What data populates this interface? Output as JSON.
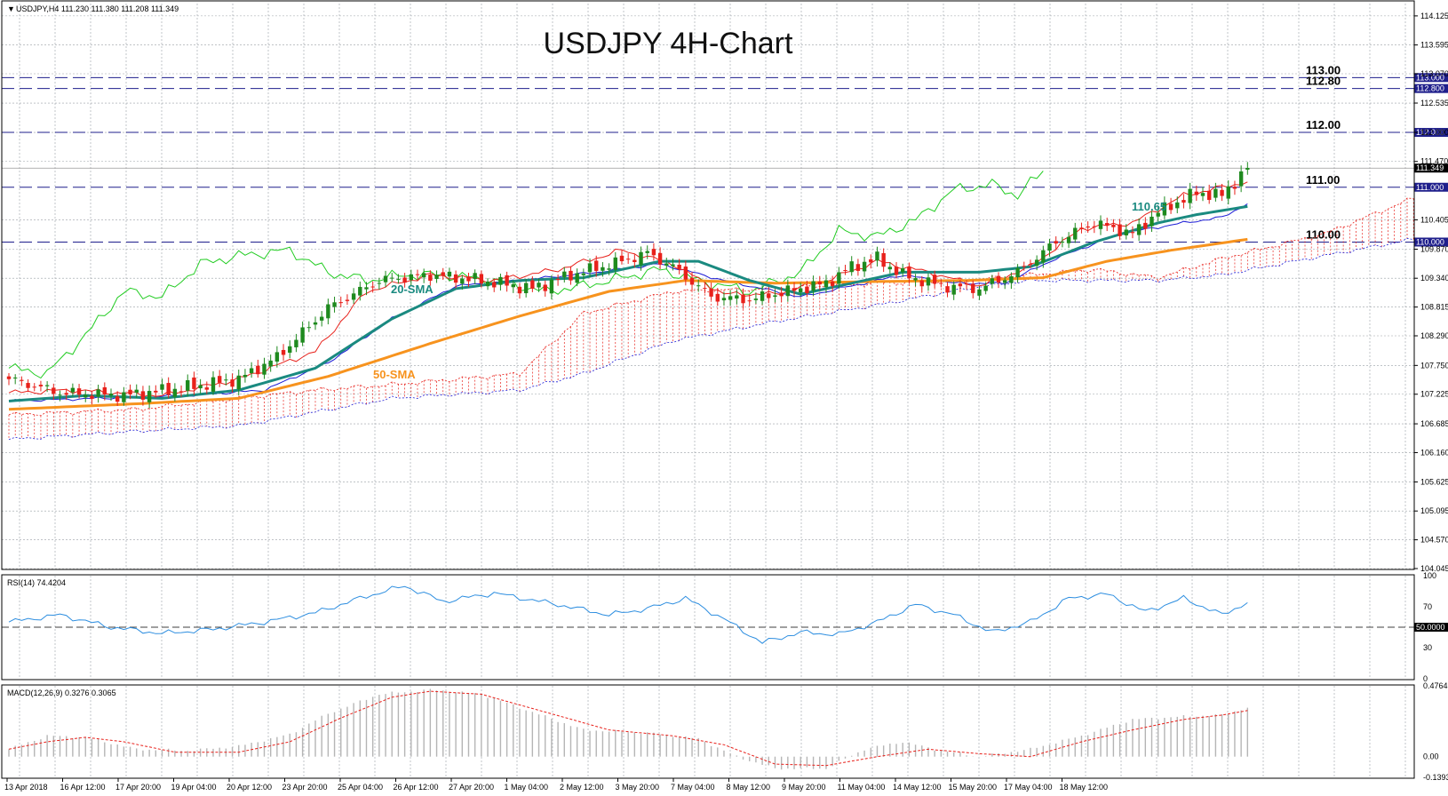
{
  "header": {
    "symbol_info": "USDJPY,H4  111.230 111.380 111.208 111.349",
    "title": "USDJPY 4H-Chart"
  },
  "colors": {
    "sma20": "#1a8a80",
    "sma50": "#f7931e",
    "tenkan": "#e8211b",
    "kijun": "#1c1cd6",
    "chikou": "#22cc22",
    "cloud": "#e8211b",
    "rsi": "#2d8ee0",
    "level_line": "#1f1f8c",
    "bull_candle": "#1e8a1e",
    "bear_candle": "#e8211b"
  },
  "chart_data": {
    "type": "candlestick",
    "ylim": [
      104.045,
      114.35
    ],
    "y_ticks": [
      "114.125",
      "113.595",
      "113.070",
      "112.535",
      "112.000",
      "111.470",
      "110.405",
      "109.870",
      "109.340",
      "108.815",
      "108.290",
      "107.750",
      "107.225",
      "106.685",
      "106.160",
      "105.625",
      "105.095",
      "104.570",
      "104.045"
    ],
    "x_ticks": [
      "13 Apr 2018",
      "16 Apr 12:00",
      "17 Apr 20:00",
      "19 Apr 04:00",
      "20 Apr 12:00",
      "23 Apr 20:00",
      "25 Apr 04:00",
      "26 Apr 12:00",
      "27 Apr 20:00",
      "1 May 04:00",
      "2 May 12:00",
      "3 May 20:00",
      "7 May 04:00",
      "8 May 12:00",
      "9 May 20:00",
      "11 May 04:00",
      "14 May 12:00",
      "15 May 20:00",
      "17 May 04:00",
      "18 May 12:00"
    ],
    "levels": [
      {
        "label": "113.00",
        "value": 113.0,
        "tag": "113.000"
      },
      {
        "label": "112.80",
        "value": 112.8,
        "tag": "112.800"
      },
      {
        "label": "112.00",
        "value": 112.0,
        "tag": "112.000"
      },
      {
        "label": "111.00",
        "value": 111.0,
        "tag": "111.000"
      },
      {
        "label": "110.00",
        "value": 110.0,
        "tag": "110.000"
      }
    ],
    "current_price": {
      "value": 111.349,
      "tag": "111.349"
    },
    "annotations": {
      "sma20": "20-SMA",
      "sma50": "50-SMA",
      "sma20_value": "110.65"
    },
    "close_anchors": [
      [
        0,
        107.5
      ],
      [
        8,
        107.25
      ],
      [
        18,
        107.2
      ],
      [
        28,
        107.35
      ],
      [
        36,
        107.5
      ],
      [
        42,
        107.9
      ],
      [
        50,
        108.8
      ],
      [
        58,
        109.3
      ],
      [
        66,
        109.4
      ],
      [
        74,
        109.3
      ],
      [
        82,
        109.15
      ],
      [
        88,
        109.4
      ],
      [
        96,
        109.65
      ],
      [
        100,
        109.8
      ],
      [
        104,
        109.55
      ],
      [
        110,
        109.0
      ],
      [
        116,
        108.95
      ],
      [
        122,
        109.1
      ],
      [
        128,
        109.25
      ],
      [
        132,
        109.55
      ],
      [
        136,
        109.7
      ],
      [
        140,
        109.4
      ],
      [
        146,
        109.2
      ],
      [
        152,
        109.15
      ],
      [
        158,
        109.45
      ],
      [
        164,
        110.0
      ],
      [
        170,
        110.35
      ],
      [
        176,
        110.15
      ],
      [
        180,
        110.55
      ],
      [
        186,
        110.9
      ],
      [
        190,
        110.85
      ],
      [
        194,
        111.349
      ]
    ],
    "sma20_anchors": [
      [
        0,
        107.1
      ],
      [
        12,
        107.2
      ],
      [
        24,
        107.15
      ],
      [
        36,
        107.3
      ],
      [
        48,
        107.7
      ],
      [
        60,
        108.6
      ],
      [
        70,
        109.15
      ],
      [
        80,
        109.3
      ],
      [
        90,
        109.35
      ],
      [
        102,
        109.65
      ],
      [
        108,
        109.65
      ],
      [
        116,
        109.3
      ],
      [
        124,
        109.05
      ],
      [
        132,
        109.25
      ],
      [
        140,
        109.45
      ],
      [
        152,
        109.45
      ],
      [
        160,
        109.55
      ],
      [
        170,
        110.0
      ],
      [
        180,
        110.35
      ],
      [
        186,
        110.5
      ],
      [
        194,
        110.65
      ]
    ],
    "sma50_anchors": [
      [
        0,
        106.95
      ],
      [
        20,
        107.05
      ],
      [
        36,
        107.15
      ],
      [
        50,
        107.55
      ],
      [
        66,
        108.15
      ],
      [
        80,
        108.65
      ],
      [
        94,
        109.1
      ],
      [
        106,
        109.3
      ],
      [
        120,
        109.25
      ],
      [
        136,
        109.28
      ],
      [
        150,
        109.3
      ],
      [
        162,
        109.35
      ],
      [
        172,
        109.65
      ],
      [
        182,
        109.85
      ],
      [
        194,
        110.05
      ]
    ],
    "tenkan_anchors": [
      [
        0,
        107.25
      ],
      [
        10,
        107.3
      ],
      [
        24,
        107.2
      ],
      [
        36,
        107.5
      ],
      [
        48,
        108.0
      ],
      [
        56,
        109.1
      ],
      [
        66,
        109.4
      ],
      [
        76,
        109.3
      ],
      [
        86,
        109.5
      ],
      [
        96,
        109.85
      ],
      [
        104,
        109.6
      ],
      [
        112,
        109.05
      ],
      [
        120,
        109.05
      ],
      [
        128,
        109.3
      ],
      [
        136,
        109.65
      ],
      [
        144,
        109.45
      ],
      [
        152,
        109.2
      ],
      [
        160,
        109.55
      ],
      [
        168,
        110.25
      ],
      [
        176,
        110.35
      ],
      [
        184,
        110.85
      ],
      [
        190,
        111.0
      ],
      [
        194,
        111.1
      ]
    ],
    "kijun_anchors": [
      [
        0,
        107.1
      ],
      [
        14,
        107.15
      ],
      [
        28,
        107.2
      ],
      [
        40,
        107.3
      ],
      [
        50,
        107.8
      ],
      [
        60,
        108.6
      ],
      [
        70,
        109.2
      ],
      [
        80,
        109.3
      ],
      [
        92,
        109.45
      ],
      [
        102,
        109.6
      ],
      [
        112,
        109.3
      ],
      [
        124,
        109.0
      ],
      [
        132,
        109.2
      ],
      [
        140,
        109.4
      ],
      [
        148,
        109.25
      ],
      [
        156,
        109.25
      ],
      [
        164,
        109.7
      ],
      [
        174,
        110.15
      ],
      [
        184,
        110.35
      ],
      [
        190,
        110.45
      ],
      [
        194,
        110.7
      ]
    ],
    "chikou_anchors": [
      [
        0,
        107.7
      ],
      [
        6,
        107.6
      ],
      [
        12,
        108.3
      ],
      [
        18,
        109.1
      ],
      [
        24,
        109.0
      ],
      [
        30,
        109.6
      ],
      [
        36,
        109.75
      ],
      [
        44,
        109.85
      ],
      [
        50,
        109.45
      ],
      [
        56,
        109.3
      ],
      [
        62,
        109.4
      ],
      [
        68,
        109.4
      ],
      [
        76,
        109.3
      ],
      [
        84,
        109.1
      ],
      [
        90,
        109.2
      ],
      [
        96,
        109.35
      ],
      [
        102,
        109.5
      ],
      [
        108,
        109.3
      ],
      [
        116,
        109.1
      ],
      [
        124,
        109.45
      ],
      [
        130,
        110.2
      ],
      [
        136,
        110.1
      ],
      [
        142,
        110.4
      ],
      [
        148,
        110.95
      ],
      [
        154,
        111.05
      ],
      [
        158,
        110.85
      ],
      [
        162,
        111.3
      ]
    ],
    "cloud_anchors": [
      [
        0,
        106.85,
        106.4
      ],
      [
        20,
        106.95,
        106.55
      ],
      [
        36,
        107.15,
        106.65
      ],
      [
        48,
        107.3,
        106.9
      ],
      [
        60,
        107.4,
        107.15
      ],
      [
        80,
        107.6,
        107.3
      ],
      [
        90,
        108.7,
        107.6
      ],
      [
        104,
        109.1,
        108.2
      ],
      [
        120,
        109.15,
        108.55
      ],
      [
        136,
        109.25,
        108.85
      ],
      [
        150,
        109.3,
        109.15
      ],
      [
        160,
        109.4,
        109.3
      ],
      [
        170,
        109.5,
        109.3
      ],
      [
        180,
        109.35,
        109.3
      ],
      [
        190,
        109.7,
        109.4
      ],
      [
        206,
        110.15,
        109.75
      ],
      [
        220,
        110.8,
        110.05
      ]
    ],
    "rsi": {
      "label": "RSI(14) 74.4204",
      "ylim": [
        0,
        100
      ],
      "ticks": [
        "100",
        "70",
        "30",
        "0"
      ],
      "level": {
        "value": 50,
        "tag": "50.0000"
      },
      "anchors": [
        [
          0,
          55
        ],
        [
          8,
          62
        ],
        [
          16,
          50
        ],
        [
          24,
          44
        ],
        [
          32,
          48
        ],
        [
          40,
          55
        ],
        [
          48,
          64
        ],
        [
          56,
          80
        ],
        [
          62,
          90
        ],
        [
          68,
          75
        ],
        [
          76,
          83
        ],
        [
          86,
          72
        ],
        [
          94,
          62
        ],
        [
          100,
          68
        ],
        [
          106,
          78
        ],
        [
          112,
          58
        ],
        [
          118,
          35
        ],
        [
          124,
          45
        ],
        [
          130,
          43
        ],
        [
          136,
          55
        ],
        [
          142,
          72
        ],
        [
          148,
          62
        ],
        [
          154,
          45
        ],
        [
          160,
          55
        ],
        [
          166,
          78
        ],
        [
          172,
          82
        ],
        [
          178,
          65
        ],
        [
          184,
          78
        ],
        [
          190,
          62
        ],
        [
          194,
          74
        ]
      ]
    },
    "macd": {
      "label": "MACD(12,26,9) 0.3276 0.3065",
      "ylim": [
        -0.1393,
        0.4764
      ],
      "ticks": [
        "0.4764",
        "0.00",
        "-0.1393"
      ],
      "hist_anchors": [
        [
          0,
          0.05
        ],
        [
          6,
          0.14
        ],
        [
          12,
          0.13
        ],
        [
          20,
          0.05
        ],
        [
          28,
          0.04
        ],
        [
          36,
          0.07
        ],
        [
          44,
          0.15
        ],
        [
          50,
          0.29
        ],
        [
          58,
          0.42
        ],
        [
          66,
          0.45
        ],
        [
          74,
          0.42
        ],
        [
          82,
          0.3
        ],
        [
          90,
          0.18
        ],
        [
          100,
          0.16
        ],
        [
          108,
          0.12
        ],
        [
          114,
          0.0
        ],
        [
          120,
          -0.08
        ],
        [
          128,
          -0.08
        ],
        [
          134,
          0.05
        ],
        [
          140,
          0.1
        ],
        [
          146,
          0.04
        ],
        [
          152,
          0.0
        ],
        [
          160,
          0.05
        ],
        [
          168,
          0.14
        ],
        [
          176,
          0.25
        ],
        [
          184,
          0.27
        ],
        [
          190,
          0.28
        ],
        [
          194,
          0.33
        ]
      ],
      "signal_anchors": [
        [
          0,
          0.05
        ],
        [
          6,
          0.1
        ],
        [
          12,
          0.13
        ],
        [
          18,
          0.1
        ],
        [
          26,
          0.03
        ],
        [
          36,
          0.03
        ],
        [
          44,
          0.1
        ],
        [
          52,
          0.26
        ],
        [
          60,
          0.4
        ],
        [
          66,
          0.44
        ],
        [
          74,
          0.42
        ],
        [
          84,
          0.3
        ],
        [
          94,
          0.18
        ],
        [
          104,
          0.14
        ],
        [
          112,
          0.08
        ],
        [
          120,
          -0.05
        ],
        [
          128,
          -0.06
        ],
        [
          136,
          0.0
        ],
        [
          144,
          0.05
        ],
        [
          152,
          0.02
        ],
        [
          160,
          0.0
        ],
        [
          168,
          0.1
        ],
        [
          176,
          0.18
        ],
        [
          184,
          0.25
        ],
        [
          190,
          0.28
        ],
        [
          194,
          0.31
        ]
      ]
    }
  }
}
